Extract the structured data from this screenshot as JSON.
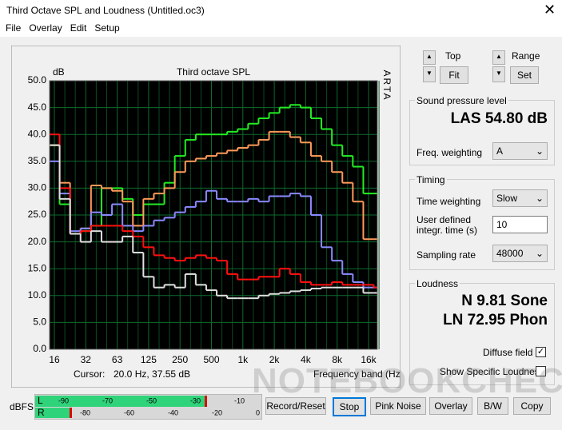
{
  "window": {
    "title": "Third Octave SPL and Loudness (Untitled.oc3)"
  },
  "menu": [
    "File",
    "Overlay",
    "Edit",
    "Setup"
  ],
  "chart_data": {
    "type": "step",
    "title": "Third octave SPL",
    "y_unit": "dB",
    "side_label": "ARTA",
    "x_label": "Frequency band (Hz)",
    "cursor_label": "Cursor:",
    "cursor_value": "20.0 Hz, 37.55 dB",
    "categories": [
      "16",
      null,
      null,
      "32",
      null,
      null,
      "63",
      null,
      null,
      "125",
      null,
      null,
      "250",
      null,
      null,
      "500",
      null,
      null,
      "1k",
      null,
      null,
      "2k",
      null,
      null,
      "4k",
      null,
      null,
      "8k",
      null,
      null,
      "16k",
      null
    ],
    "ylim": [
      0,
      50
    ],
    "yticks": [
      {
        "value": 0,
        "label": "0.0"
      },
      {
        "value": 5,
        "label": "5.0"
      },
      {
        "value": 10,
        "label": "10.0"
      },
      {
        "value": 15,
        "label": "15.0"
      },
      {
        "value": 20,
        "label": "20.0"
      },
      {
        "value": 25,
        "label": "25.0"
      },
      {
        "value": 30,
        "label": "30.0"
      },
      {
        "value": 35,
        "label": "35.0"
      },
      {
        "value": 40,
        "label": "40.0"
      },
      {
        "value": 45,
        "label": "45.0"
      },
      {
        "value": 50,
        "label": "50.0"
      }
    ],
    "grid": true,
    "series": [
      {
        "color": "#22ee22",
        "values": [
          38,
          27,
          21.5,
          22,
          23,
          30,
          30,
          28,
          25,
          27,
          27,
          31,
          36,
          39,
          40,
          40,
          40,
          40.5,
          41,
          42,
          43,
          44,
          45,
          45.5,
          45,
          43,
          41,
          38,
          36,
          34,
          29,
          29
        ]
      },
      {
        "color": "#ff9a5a",
        "values": [
          38,
          31,
          21.5,
          22.5,
          30.5,
          30,
          29.5,
          27.5,
          23,
          28,
          29,
          30,
          33,
          35,
          35.5,
          36,
          36.5,
          37,
          37.5,
          38,
          39,
          40.5,
          40.5,
          39.5,
          38.5,
          36,
          35,
          33,
          31,
          27.5,
          20.5,
          20.5
        ]
      },
      {
        "color": "#8a8aff",
        "values": [
          35,
          29,
          22,
          22.5,
          25.5,
          25,
          27,
          23,
          22,
          23,
          24,
          24.5,
          25.5,
          26.5,
          27.5,
          29.5,
          28,
          27.5,
          27.5,
          28,
          27.5,
          28.5,
          28.5,
          29,
          28.5,
          25,
          19,
          16.5,
          14,
          12.5,
          11.5,
          11.5
        ]
      },
      {
        "color": "#ff1010",
        "values": [
          40,
          30,
          21.5,
          22,
          23,
          23,
          23,
          22,
          21,
          19,
          17.5,
          17,
          16.5,
          17,
          17.5,
          17,
          16.5,
          14,
          13,
          13,
          13.5,
          13.5,
          15,
          14,
          12.5,
          12,
          12,
          12.5,
          12,
          12,
          12,
          11.5
        ]
      },
      {
        "color": "#e0e0e0",
        "values": [
          38,
          28,
          21.5,
          20,
          22,
          20,
          20,
          21,
          18,
          13.5,
          11.5,
          12,
          11.5,
          14,
          12,
          11,
          10,
          9.5,
          9.5,
          9.5,
          10,
          10.3,
          10.5,
          10.8,
          11,
          11.3,
          11.5,
          11.5,
          11.5,
          11.5,
          10.5,
          10.5
        ]
      }
    ]
  },
  "panel": {
    "top": "Top",
    "fit": "Fit",
    "range": "Range",
    "set": "Set",
    "spl_group": "Sound pressure level",
    "spl_value": "LAS 54.80 dB",
    "freq_weighting_label": "Freq. weighting",
    "freq_weighting": "A",
    "timing_group": "Timing",
    "time_weighting_label": "Time weighting",
    "time_weighting": "Slow",
    "integr_label_1": "User defined",
    "integr_label_2": "integr. time (s)",
    "integr_value": "10",
    "sampling_rate_label": "Sampling rate",
    "sampling_rate": "48000",
    "loudness_group": "Loudness",
    "loudness_n": "N 9.81 Sone",
    "loudness_ln": "LN 72.95 Phon",
    "diffuse_field": "Diffuse field",
    "diffuse_field_checked": true,
    "show_specific": "Show Specific Loudness",
    "show_specific_checked": false
  },
  "meters": {
    "label": "dBFS",
    "left": "L",
    "right": "R",
    "left_ticks": [
      "-90",
      "-70",
      "-50",
      "-30",
      "-10"
    ],
    "right_ticks": [
      "-80",
      "-60",
      "-40",
      "-20",
      "0"
    ]
  },
  "buttons": [
    "Record/Reset",
    "Stop",
    "Pink Noise",
    "Overlay",
    "B/W",
    "Copy"
  ],
  "watermark": "NOTEBOOKCHECK"
}
